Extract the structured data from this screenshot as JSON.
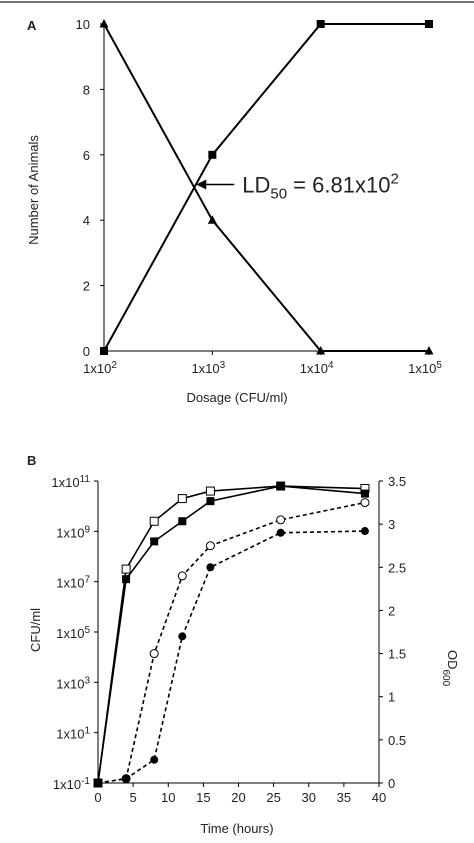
{
  "chart_data": [
    {
      "panel": "A",
      "type": "line",
      "xlabel": "Dosage (CFU/ml)",
      "ylabel": "Number of Animals",
      "ylim": [
        0,
        10
      ],
      "x_scale": "log",
      "xticks": [
        {
          "value": 100,
          "base": "1x10",
          "exp": "2"
        },
        {
          "value": 1000,
          "base": "1x10",
          "exp": "3"
        },
        {
          "value": 10000,
          "base": "1x10",
          "exp": "4"
        },
        {
          "value": 100000,
          "base": "1x10",
          "exp": "5"
        }
      ],
      "yticks": [
        0,
        2,
        4,
        6,
        8,
        10
      ],
      "series": [
        {
          "marker": "square",
          "points": [
            [
              100,
              0
            ],
            [
              1000,
              6
            ],
            [
              10000,
              10
            ],
            [
              100000,
              10
            ]
          ]
        },
        {
          "marker": "triangle",
          "points": [
            [
              100,
              10
            ],
            [
              1000,
              4
            ],
            [
              10000,
              0
            ],
            [
              100000,
              0
            ]
          ]
        }
      ],
      "annotation": {
        "pre": "LD",
        "sub": "50",
        "mid": " = 6.81x10",
        "sup": "2",
        "x": 681,
        "y": 5
      }
    },
    {
      "panel": "B",
      "type": "line",
      "xlabel": "Time (hours)",
      "ylabel": "CFU/ml",
      "y2label": "OD",
      "y2label_sub": "600",
      "xlim": [
        0,
        40
      ],
      "xticks": [
        0,
        5,
        10,
        15,
        20,
        25,
        30,
        35,
        40
      ],
      "y_scale": "log",
      "yticks": [
        {
          "exp": -1,
          "base": "1x10",
          "expText": "-1"
        },
        {
          "exp": 1,
          "base": "1x10",
          "expText": "1"
        },
        {
          "exp": 3,
          "base": "1x10",
          "expText": "3"
        },
        {
          "exp": 5,
          "base": "1x10",
          "expText": "5"
        },
        {
          "exp": 7,
          "base": "1x10",
          "expText": "7"
        },
        {
          "exp": 9,
          "base": "1x10",
          "expText": "9"
        },
        {
          "exp": 11,
          "base": "1x10",
          "expText": "11"
        }
      ],
      "y2lim": [
        0,
        3.5
      ],
      "y2ticks": [
        "0",
        "0.5",
        "1",
        "1.5",
        "2",
        "2.5",
        "3",
        "3.5"
      ],
      "series": [
        {
          "marker": "open-square",
          "line": "solid",
          "axis": "left",
          "points": [
            [
              0,
              -1
            ],
            [
              4,
              7.5
            ],
            [
              8,
              9.4
            ],
            [
              12,
              10.3
            ],
            [
              16,
              10.6
            ],
            [
              26,
              10.8
            ],
            [
              38,
              10.7
            ]
          ]
        },
        {
          "marker": "filled-square",
          "line": "solid",
          "axis": "left",
          "points": [
            [
              0,
              -1
            ],
            [
              4,
              7.1
            ],
            [
              8,
              8.6
            ],
            [
              12,
              9.4
            ],
            [
              16,
              10.2
            ],
            [
              26,
              10.8
            ],
            [
              38,
              10.5
            ]
          ]
        },
        {
          "marker": "open-circle",
          "line": "dashed",
          "axis": "right",
          "points": [
            [
              0,
              0
            ],
            [
              4,
              0.05
            ],
            [
              8,
              1.5
            ],
            [
              12,
              2.4
            ],
            [
              16,
              2.75
            ],
            [
              26,
              3.05
            ],
            [
              38,
              3.25
            ]
          ]
        },
        {
          "marker": "filled-circle",
          "line": "dashed",
          "axis": "right",
          "points": [
            [
              0,
              0
            ],
            [
              4,
              0.05
            ],
            [
              8,
              0.27
            ],
            [
              12,
              1.7
            ],
            [
              16,
              2.5
            ],
            [
              26,
              2.9
            ],
            [
              38,
              2.92
            ]
          ]
        }
      ]
    }
  ]
}
